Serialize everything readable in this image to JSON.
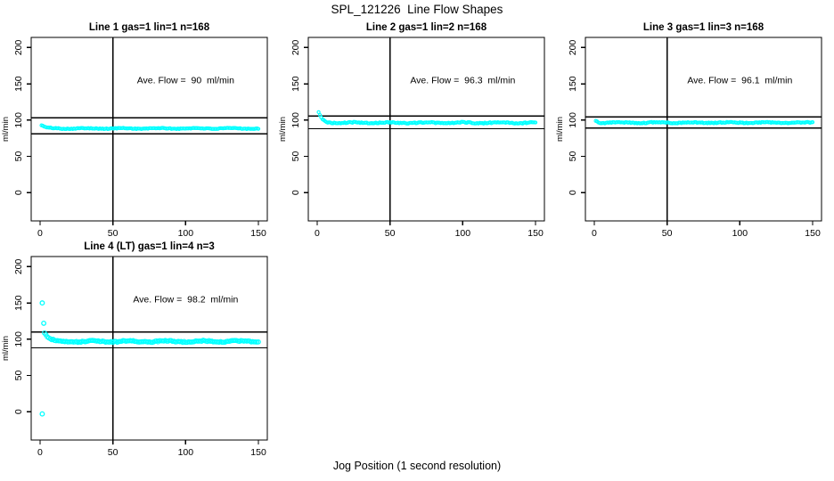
{
  "figure": {
    "title": "SPL_121226  Line Flow Shapes",
    "xlabel": "Jog Position (1 second resolution)",
    "background_color": "#ffffff",
    "point_color": "#00ffff",
    "line_color": "#000000"
  },
  "chart_data": [
    {
      "type": "scatter",
      "title": "Line 1 gas=1 lin=1 n=168",
      "annotation": "Ave. Flow =  90  ml/min",
      "annotation_xy": [
        100,
        155
      ],
      "ave_flow_ml_min": 90,
      "n": 168,
      "ylabel": "ml/min",
      "x_ticks": [
        0,
        50,
        100,
        150
      ],
      "y_ticks": [
        0,
        50,
        100,
        150,
        200
      ],
      "xlim": [
        -6.1,
        156.1
      ],
      "ylim": [
        -39,
        214
      ],
      "vline_x": 50,
      "hlines": [
        103,
        81
      ],
      "band": {
        "x_start": 1,
        "x_end": 150,
        "n_points": 168,
        "y_start": 93,
        "y_settle": 88.5,
        "decay_tau": 2.5,
        "noise": 1.0,
        "wiggle": 0.45,
        "point_radius": 1.6
      },
      "outliers": []
    },
    {
      "type": "scatter",
      "title": "Line 2 gas=1 lin=2 n=168",
      "annotation": "Ave. Flow =  96.3  ml/min",
      "annotation_xy": [
        100,
        155
      ],
      "ave_flow_ml_min": 96.3,
      "n": 168,
      "ylabel": "ml/min",
      "x_ticks": [
        0,
        50,
        100,
        150
      ],
      "y_ticks": [
        0,
        50,
        100,
        150,
        200
      ],
      "xlim": [
        -6.1,
        156.1
      ],
      "ylim": [
        -39,
        214
      ],
      "vline_x": 50,
      "hlines": [
        105.5,
        88
      ],
      "band": {
        "x_start": 1,
        "x_end": 150,
        "n_points": 168,
        "y_start": 111,
        "y_settle": 96.3,
        "decay_tau": 2.2,
        "noise": 1.4,
        "wiggle": 0.55,
        "point_radius": 1.6
      },
      "outliers": []
    },
    {
      "type": "scatter",
      "title": "Line 3 gas=1 lin=3 n=168",
      "annotation": "Ave. Flow =  96.1  ml/min",
      "annotation_xy": [
        100,
        155
      ],
      "ave_flow_ml_min": 96.1,
      "n": 168,
      "ylabel": "ml/min",
      "x_ticks": [
        0,
        50,
        100,
        150
      ],
      "y_ticks": [
        0,
        50,
        100,
        150,
        200
      ],
      "xlim": [
        -6.1,
        156.1
      ],
      "ylim": [
        -39,
        214
      ],
      "vline_x": 50,
      "hlines": [
        104.5,
        89
      ],
      "band": {
        "x_start": 1,
        "x_end": 150,
        "n_points": 168,
        "y_start": 99,
        "y_settle": 96.5,
        "decay_tau": 1.5,
        "noise": 1.3,
        "wiggle": 0.5,
        "point_radius": 1.6
      },
      "outliers": []
    },
    {
      "type": "scatter",
      "title": "Line 4 (LT) gas=1 lin=4 n=3",
      "annotation": "Ave. Flow =  98.2  ml/min",
      "annotation_xy": [
        100,
        155
      ],
      "ave_flow_ml_min": 98.2,
      "n": 3,
      "ylabel": "ml/min",
      "x_ticks": [
        0,
        50,
        100,
        150
      ],
      "y_ticks": [
        0,
        50,
        100,
        150,
        200
      ],
      "xlim": [
        -6.1,
        156.1
      ],
      "ylim": [
        -39,
        214
      ],
      "vline_x": 50,
      "hlines": [
        110,
        88
      ],
      "band": {
        "x_start": 3,
        "x_end": 150,
        "n_points": 148,
        "y_start": 109,
        "y_settle": 97,
        "decay_tau": 3,
        "noise": 1.6,
        "wiggle": 0.8,
        "point_radius": 2.3
      },
      "outliers": [
        [
          1.5,
          150
        ],
        [
          2.5,
          122
        ],
        [
          1.5,
          -3
        ]
      ]
    }
  ]
}
